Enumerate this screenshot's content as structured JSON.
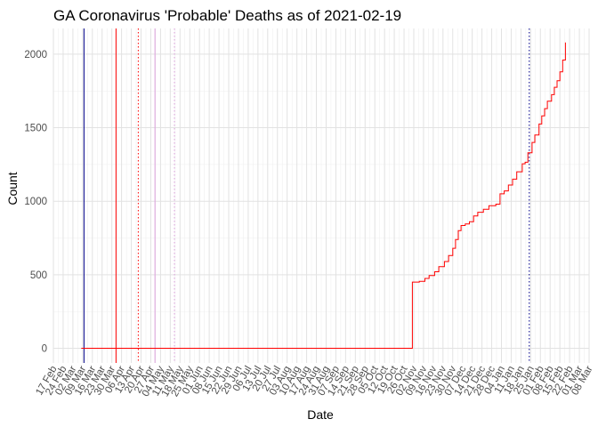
{
  "chart_data": {
    "type": "line",
    "title": "GA Coronavirus 'Probable' Deaths as of 2021-02-19",
    "xlabel": "Date",
    "ylabel": "Count",
    "xlim": [
      "2020-02-17",
      "2021-03-08"
    ],
    "ylim": [
      -100,
      2175
    ],
    "y_ticks": [
      0,
      500,
      1000,
      1500,
      2000
    ],
    "x_ticks": [
      {
        "date": "2020-02-17",
        "label": "17 Feb"
      },
      {
        "date": "2020-02-24",
        "label": "24 Feb"
      },
      {
        "date": "2020-03-02",
        "label": "02 Mar"
      },
      {
        "date": "2020-03-09",
        "label": "09 Mar"
      },
      {
        "date": "2020-03-16",
        "label": "16 Mar"
      },
      {
        "date": "2020-03-23",
        "label": "23 Mar"
      },
      {
        "date": "2020-03-30",
        "label": "30 Mar"
      },
      {
        "date": "2020-04-06",
        "label": "06 Apr"
      },
      {
        "date": "2020-04-13",
        "label": "13 Apr"
      },
      {
        "date": "2020-04-20",
        "label": "20 Apr"
      },
      {
        "date": "2020-04-27",
        "label": "27 Apr"
      },
      {
        "date": "2020-05-04",
        "label": "04 May"
      },
      {
        "date": "2020-05-11",
        "label": "11 May"
      },
      {
        "date": "2020-05-18",
        "label": "18 May"
      },
      {
        "date": "2020-05-25",
        "label": "25 May"
      },
      {
        "date": "2020-06-01",
        "label": "01 Jun"
      },
      {
        "date": "2020-06-08",
        "label": "08 Jun"
      },
      {
        "date": "2020-06-15",
        "label": "15 Jun"
      },
      {
        "date": "2020-06-22",
        "label": "22 Jun"
      },
      {
        "date": "2020-06-29",
        "label": "29 Jun"
      },
      {
        "date": "2020-07-06",
        "label": "06 Jul"
      },
      {
        "date": "2020-07-13",
        "label": "13 Jul"
      },
      {
        "date": "2020-07-20",
        "label": "20 Jul"
      },
      {
        "date": "2020-07-27",
        "label": "27 Jul"
      },
      {
        "date": "2020-08-03",
        "label": "03 Aug"
      },
      {
        "date": "2020-08-10",
        "label": "10 Aug"
      },
      {
        "date": "2020-08-17",
        "label": "17 Aug"
      },
      {
        "date": "2020-08-24",
        "label": "24 Aug"
      },
      {
        "date": "2020-08-31",
        "label": "31 Aug"
      },
      {
        "date": "2020-09-07",
        "label": "07 Sep"
      },
      {
        "date": "2020-09-14",
        "label": "14 Sep"
      },
      {
        "date": "2020-09-21",
        "label": "21 Sep"
      },
      {
        "date": "2020-09-28",
        "label": "28 Sep"
      },
      {
        "date": "2020-10-05",
        "label": "05 Oct"
      },
      {
        "date": "2020-10-12",
        "label": "12 Oct"
      },
      {
        "date": "2020-10-19",
        "label": "19 Oct"
      },
      {
        "date": "2020-10-26",
        "label": "26 Oct"
      },
      {
        "date": "2020-11-02",
        "label": "02 Nov"
      },
      {
        "date": "2020-11-09",
        "label": "09 Nov"
      },
      {
        "date": "2020-11-16",
        "label": "16 Nov"
      },
      {
        "date": "2020-11-23",
        "label": "23 Nov"
      },
      {
        "date": "2020-11-30",
        "label": "30 Nov"
      },
      {
        "date": "2020-12-07",
        "label": "07 Dec"
      },
      {
        "date": "2020-12-14",
        "label": "14 Dec"
      },
      {
        "date": "2020-12-21",
        "label": "21 Dec"
      },
      {
        "date": "2020-12-28",
        "label": "28 Dec"
      },
      {
        "date": "2021-01-04",
        "label": "04 Jan"
      },
      {
        "date": "2021-01-11",
        "label": "11 Jan"
      },
      {
        "date": "2021-01-18",
        "label": "18 Jan"
      },
      {
        "date": "2021-01-25",
        "label": "25 Jan"
      },
      {
        "date": "2021-02-01",
        "label": "01 Feb"
      },
      {
        "date": "2021-02-08",
        "label": "08 Feb"
      },
      {
        "date": "2021-02-15",
        "label": "15 Feb"
      },
      {
        "date": "2021-02-22",
        "label": "22 Feb"
      },
      {
        "date": "2021-03-01",
        "label": "01 Mar"
      },
      {
        "date": "2021-03-08",
        "label": "08 Mar"
      }
    ],
    "series": [
      {
        "color": "#ff0000",
        "step": true,
        "points": [
          [
            "2020-03-08",
            0
          ],
          [
            "2020-10-31",
            0
          ],
          [
            "2020-11-01",
            450
          ],
          [
            "2020-11-06",
            455
          ],
          [
            "2020-11-10",
            475
          ],
          [
            "2020-11-13",
            495
          ],
          [
            "2020-11-17",
            520
          ],
          [
            "2020-11-20",
            555
          ],
          [
            "2020-11-24",
            590
          ],
          [
            "2020-11-27",
            630
          ],
          [
            "2020-11-30",
            680
          ],
          [
            "2020-12-02",
            740
          ],
          [
            "2020-12-04",
            800
          ],
          [
            "2020-12-06",
            835
          ],
          [
            "2020-12-09",
            845
          ],
          [
            "2020-12-12",
            860
          ],
          [
            "2020-12-15",
            900
          ],
          [
            "2020-12-18",
            925
          ],
          [
            "2020-12-22",
            945
          ],
          [
            "2020-12-26",
            970
          ],
          [
            "2020-12-31",
            980
          ],
          [
            "2021-01-03",
            1050
          ],
          [
            "2021-01-06",
            1070
          ],
          [
            "2021-01-09",
            1110
          ],
          [
            "2021-01-12",
            1150
          ],
          [
            "2021-01-15",
            1200
          ],
          [
            "2021-01-19",
            1255
          ],
          [
            "2021-01-21",
            1265
          ],
          [
            "2021-01-23",
            1330
          ],
          [
            "2021-01-26",
            1400
          ],
          [
            "2021-01-28",
            1450
          ],
          [
            "2021-01-31",
            1525
          ],
          [
            "2021-02-02",
            1580
          ],
          [
            "2021-02-04",
            1630
          ],
          [
            "2021-02-06",
            1680
          ],
          [
            "2021-02-09",
            1725
          ],
          [
            "2021-02-11",
            1775
          ],
          [
            "2021-02-13",
            1820
          ],
          [
            "2021-02-15",
            1880
          ],
          [
            "2021-02-17",
            1960
          ],
          [
            "2021-02-19",
            2080
          ]
        ]
      }
    ],
    "reference_lines": [
      {
        "date": "2020-03-10",
        "color": "#00008b",
        "style": "solid"
      },
      {
        "date": "2020-04-02",
        "color": "#ff0000",
        "style": "solid"
      },
      {
        "date": "2020-04-18",
        "color": "#ff0000",
        "style": "dotted"
      },
      {
        "date": "2020-04-30",
        "color": "#dda0dd",
        "style": "solid"
      },
      {
        "date": "2020-05-14",
        "color": "#dda0dd",
        "style": "dotted"
      },
      {
        "date": "2021-01-24",
        "color": "#00008b",
        "style": "dotted"
      }
    ],
    "grid": true
  }
}
